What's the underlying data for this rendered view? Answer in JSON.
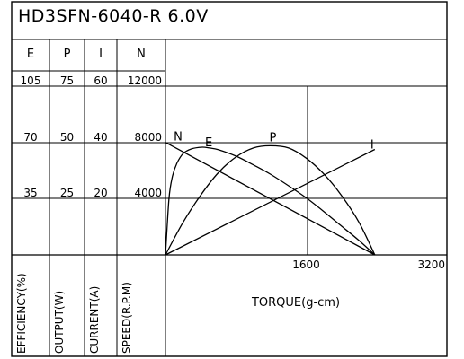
{
  "chart_data": {
    "type": "line",
    "title": "HD3SFN-6040-R   6.0V",
    "xlabel": "TORQUE(g-cm)",
    "xlim": [
      0,
      3200
    ],
    "x_ticks": [
      "1600",
      "3200"
    ],
    "grid": true,
    "axis_columns": [
      {
        "symbol": "E",
        "label": "EFFICIENCY(%)",
        "ticks": [
          "105",
          "70",
          "35"
        ]
      },
      {
        "symbol": "P",
        "label": "OUTPUT(W)",
        "ticks": [
          "75",
          "50",
          "25"
        ]
      },
      {
        "symbol": "I",
        "label": "CURRENT(A)",
        "ticks": [
          "60",
          "40",
          "20"
        ]
      },
      {
        "symbol": "N",
        "label": "SPEED(R.P.M)",
        "ticks": [
          "12000",
          "8000",
          "4000"
        ]
      }
    ],
    "series": [
      {
        "name": "N",
        "axis": "SPEED(R.P.M)",
        "ylim": [
          0,
          12000
        ],
        "x": [
          0,
          2380
        ],
        "y": [
          8000,
          0
        ]
      },
      {
        "name": "E",
        "axis": "EFFICIENCY(%)",
        "ylim": [
          0,
          105
        ],
        "x": [
          0,
          40,
          80,
          130,
          200,
          300,
          420,
          500,
          600,
          800,
          1000,
          1200,
          1400,
          1600,
          1800,
          2000,
          2200,
          2380
        ],
        "y": [
          0,
          35,
          49,
          57,
          63,
          66,
          67,
          66.5,
          65.5,
          61.5,
          56,
          50,
          43,
          35.5,
          27,
          18,
          9,
          0
        ]
      },
      {
        "name": "P",
        "axis": "OUTPUT(W)",
        "ylim": [
          0,
          75
        ],
        "x": [
          0,
          200,
          400,
          600,
          800,
          1000,
          1190,
          1400,
          1600,
          1800,
          2000,
          2200,
          2380
        ],
        "y": [
          0,
          14.5,
          26.5,
          36.5,
          43.5,
          47.5,
          48.5,
          47.5,
          43,
          36,
          26.5,
          14.5,
          0
        ]
      },
      {
        "name": "I",
        "axis": "CURRENT(A)",
        "ylim": [
          0,
          60
        ],
        "x": [
          0,
          2380
        ],
        "y": [
          0,
          37.5
        ]
      }
    ]
  }
}
